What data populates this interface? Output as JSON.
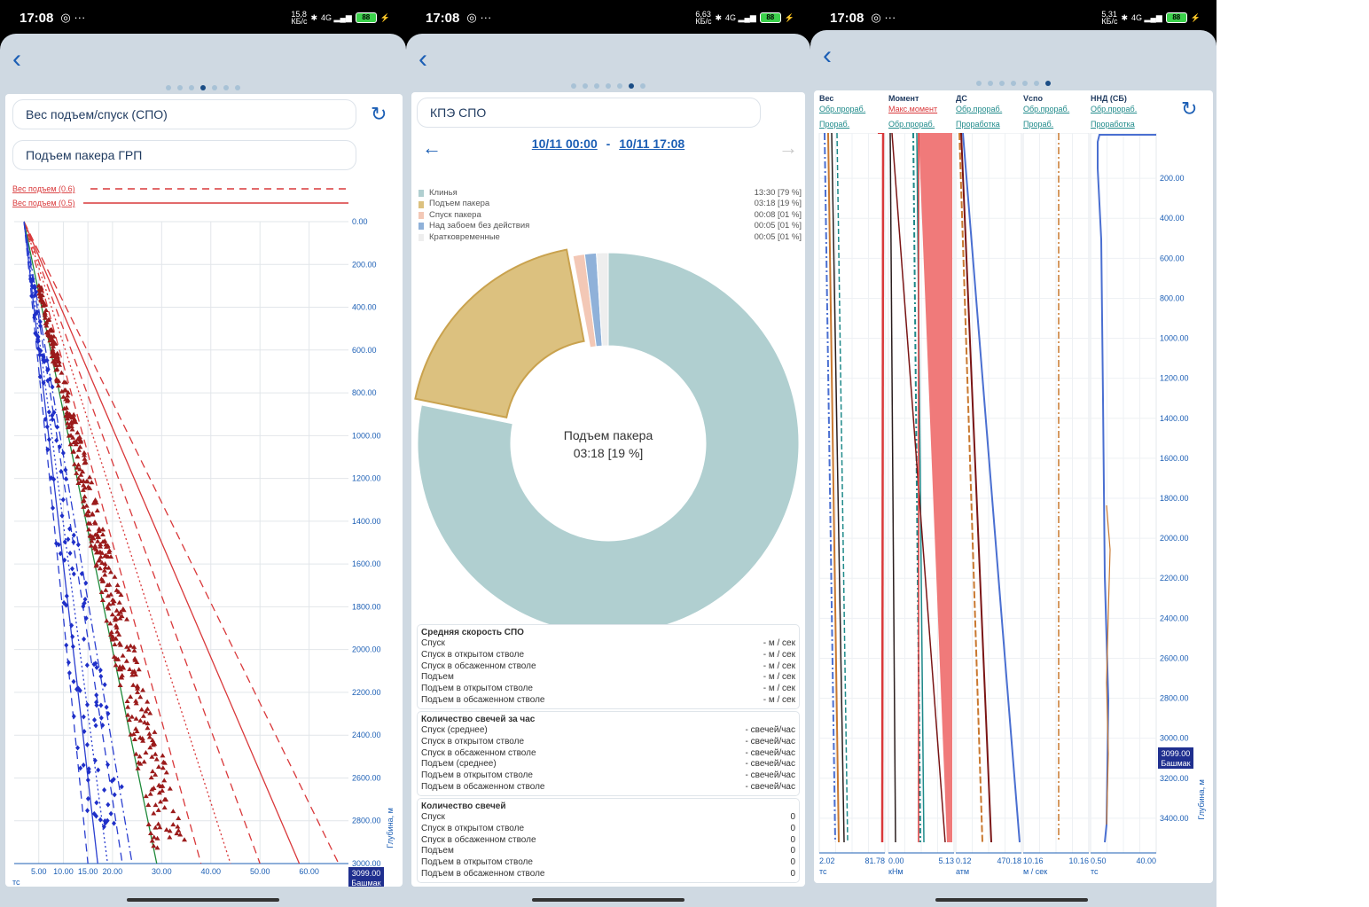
{
  "phones": [
    {
      "status": {
        "time": "17:08",
        "speed": "15,8\nКБ/с",
        "battery": "88"
      },
      "title": "Вес подъем/спуск (СПО)",
      "subtitle": "Подъем пакера ГРП",
      "legend": [
        "Вес подъем (0.6)",
        "Вес подъем (0.5)"
      ],
      "y_ticks": [
        "0.00",
        "200.00",
        "400.00",
        "600.00",
        "800.00",
        "1000.00",
        "1200.00",
        "1400.00",
        "1600.00",
        "1800.00",
        "2000.00",
        "2200.00",
        "2400.00",
        "2600.00",
        "2800.00",
        "3000.00"
      ],
      "x_ticks": [
        "5.00",
        "10.00",
        "15.00",
        "20.00",
        "30.00",
        "40.00",
        "50.00",
        "60.00"
      ],
      "x_unit": "тс",
      "y_axis_label": "Глубина, м",
      "depth_marker": "3099.00",
      "depth_marker_label": "Башмак",
      "dots_active": 3,
      "dots_total": 7
    },
    {
      "status": {
        "time": "17:08",
        "speed": "6,63\nКБ/с",
        "battery": "88"
      },
      "title": "КПЭ СПО",
      "date_from": "10/11 00:00",
      "date_sep": "-",
      "date_to": "10/11 17:08",
      "legend": [
        {
          "label": "Клинья",
          "value": "13:30 [79 %]",
          "color": "#b0cfd0"
        },
        {
          "label": "Подъем пакера",
          "value": "03:18 [19 %]",
          "color": "#dcc17f"
        },
        {
          "label": "Спуск пакера",
          "value": "00:08 [01 %]",
          "color": "#f3c8b6"
        },
        {
          "label": "Над забоем без действия",
          "value": "00:05 [01 %]",
          "color": "#8fb1d9"
        },
        {
          "label": "Кратковременные",
          "value": "00:05 [01 %]",
          "color": "#eeeeee"
        }
      ],
      "center_label": "Подъем пакера",
      "center_value": "03:18 [19 %]",
      "sections": [
        {
          "title": "Средняя скорость СПО",
          "rows": [
            [
              "Спуск",
              "- м / сек"
            ],
            [
              "Спуск в открытом стволе",
              "- м / сек"
            ],
            [
              "Спуск в обсаженном стволе",
              "- м / сек"
            ],
            [
              "Подъем",
              "- м / сек"
            ],
            [
              "Подъем в открытом стволе",
              "- м / сек"
            ],
            [
              "Подъем в обсаженном стволе",
              "- м / сек"
            ]
          ]
        },
        {
          "title": "Количество свечей за час",
          "rows": [
            [
              "Спуск (среднее)",
              "- свечей/час"
            ],
            [
              "Спуск в открытом стволе",
              "- свечей/час"
            ],
            [
              "Спуск в обсаженном стволе",
              "- свечей/час"
            ],
            [
              "Подъем (среднее)",
              "- свечей/час"
            ],
            [
              "Подъем в открытом стволе",
              "- свечей/час"
            ],
            [
              "Подъем в обсаженном стволе",
              "- свечей/час"
            ]
          ]
        },
        {
          "title": "Количество свечей",
          "rows": [
            [
              "Спуск",
              "0"
            ],
            [
              "Спуск в открытом стволе",
              "0"
            ],
            [
              "Спуск в обсаженном стволе",
              "0"
            ],
            [
              "Подъем",
              "0"
            ],
            [
              "Подъем в открытом стволе",
              "0"
            ],
            [
              "Подъем в обсаженном стволе",
              "0"
            ]
          ]
        }
      ],
      "dots_active": 5,
      "dots_total": 7
    },
    {
      "status": {
        "time": "17:08",
        "speed": "5,31\nКБ/с",
        "battery": "88"
      },
      "tracks": [
        {
          "title": "Вес",
          "sub1": "Обр.прораб.",
          "sub2": "Прораб.",
          "min": "2.02",
          "max": "81.78",
          "unit": "тс"
        },
        {
          "title": "Момент",
          "sub1": "Макс.момент",
          "sub2": "Обр.прораб.",
          "min": "0.00",
          "max": "5.13",
          "unit": "кНм"
        },
        {
          "title": "ДС",
          "sub1": "Обр.прораб.",
          "sub2": "Проработка",
          "min": "0.12",
          "max": "470.18",
          "unit": "атм"
        },
        {
          "title": "Vспо",
          "sub1": "Обр.прораб.",
          "sub2": "Прораб.",
          "min": "10.16",
          "max": "10.16",
          "unit": "м / сек"
        },
        {
          "title": "ННД (СБ)",
          "sub1": "Обр.прораб.",
          "sub2": "Проработка",
          "min": "0.50",
          "max": "40.00",
          "unit": "тс"
        }
      ],
      "y_ticks": [
        "200.00",
        "400.00",
        "600.00",
        "800.00",
        "1000.00",
        "1200.00",
        "1400.00",
        "1600.00",
        "1800.00",
        "2000.00",
        "2200.00",
        "2400.00",
        "2600.00",
        "2800.00",
        "3000.00",
        "3200.00",
        "3400.00"
      ],
      "y_axis_label": "Глубина, м",
      "depth_marker": "3099.00",
      "depth_marker_label": "Башмак",
      "dots_active": 6,
      "dots_total": 7
    }
  ],
  "chart_data": [
    {
      "type": "line",
      "title": "Вес подъем/спуск (СПО)",
      "xlabel": "тс",
      "ylabel": "Глубина, м",
      "xlim": [
        0,
        68
      ],
      "ylim": [
        3000,
        0
      ],
      "series": [
        {
          "name": "Вес подъем (0.6)",
          "style": "dashed",
          "color": "#d9383a",
          "points": [
            [
              2,
              0
            ],
            [
              66,
              3000
            ]
          ]
        },
        {
          "name": "Вес подъем (0.5)",
          "style": "solid",
          "color": "#d9383a",
          "points": [
            [
              2,
              0
            ],
            [
              58,
              3000
            ]
          ]
        }
      ],
      "unlabeled_series": [
        {
          "style": "dashed",
          "color": "#d9383a",
          "points": [
            [
              2,
              0
            ],
            [
              50,
              3000
            ]
          ]
        },
        {
          "style": "dotted",
          "color": "#d9383a",
          "points": [
            [
              2,
              0
            ],
            [
              44,
              3000
            ]
          ]
        },
        {
          "style": "dashed",
          "color": "#d9383a",
          "points": [
            [
              2,
              0
            ],
            [
              38,
              3000
            ]
          ]
        },
        {
          "style": "solid",
          "color": "#1f8a3a",
          "points": [
            [
              2,
              0
            ],
            [
              29,
              3000
            ]
          ]
        },
        {
          "style": "solid",
          "color": "#2b3fd0",
          "points": [
            [
              2,
              0
            ],
            [
              17,
              3000
            ]
          ]
        },
        {
          "style": "dashed",
          "color": "#2b3fd0",
          "points": [
            [
              2,
              0
            ],
            [
              15,
              3000
            ]
          ]
        },
        {
          "style": "dotted",
          "color": "#2b3fd0",
          "points": [
            [
              2,
              0
            ],
            [
              19,
              3000
            ]
          ]
        },
        {
          "style": "dashed",
          "color": "#2b3fd0",
          "points": [
            [
              2,
              0
            ],
            [
              22,
              3000
            ]
          ]
        },
        {
          "style": "dashdot",
          "color": "#2b3fd0",
          "points": [
            [
              2,
              0
            ],
            [
              24,
              3000
            ]
          ]
        }
      ]
    },
    {
      "type": "pie",
      "title": "КПЭ СПО",
      "categories": [
        "Клинья",
        "Подъем пакера",
        "Спуск пакера",
        "Над забоем без действия",
        "Кратковременные"
      ],
      "values": [
        79,
        19,
        1,
        1,
        1
      ],
      "colors": [
        "#b0cfd0",
        "#dcc17f",
        "#f3c8b6",
        "#8fb1d9",
        "#eeeeee"
      ]
    }
  ]
}
